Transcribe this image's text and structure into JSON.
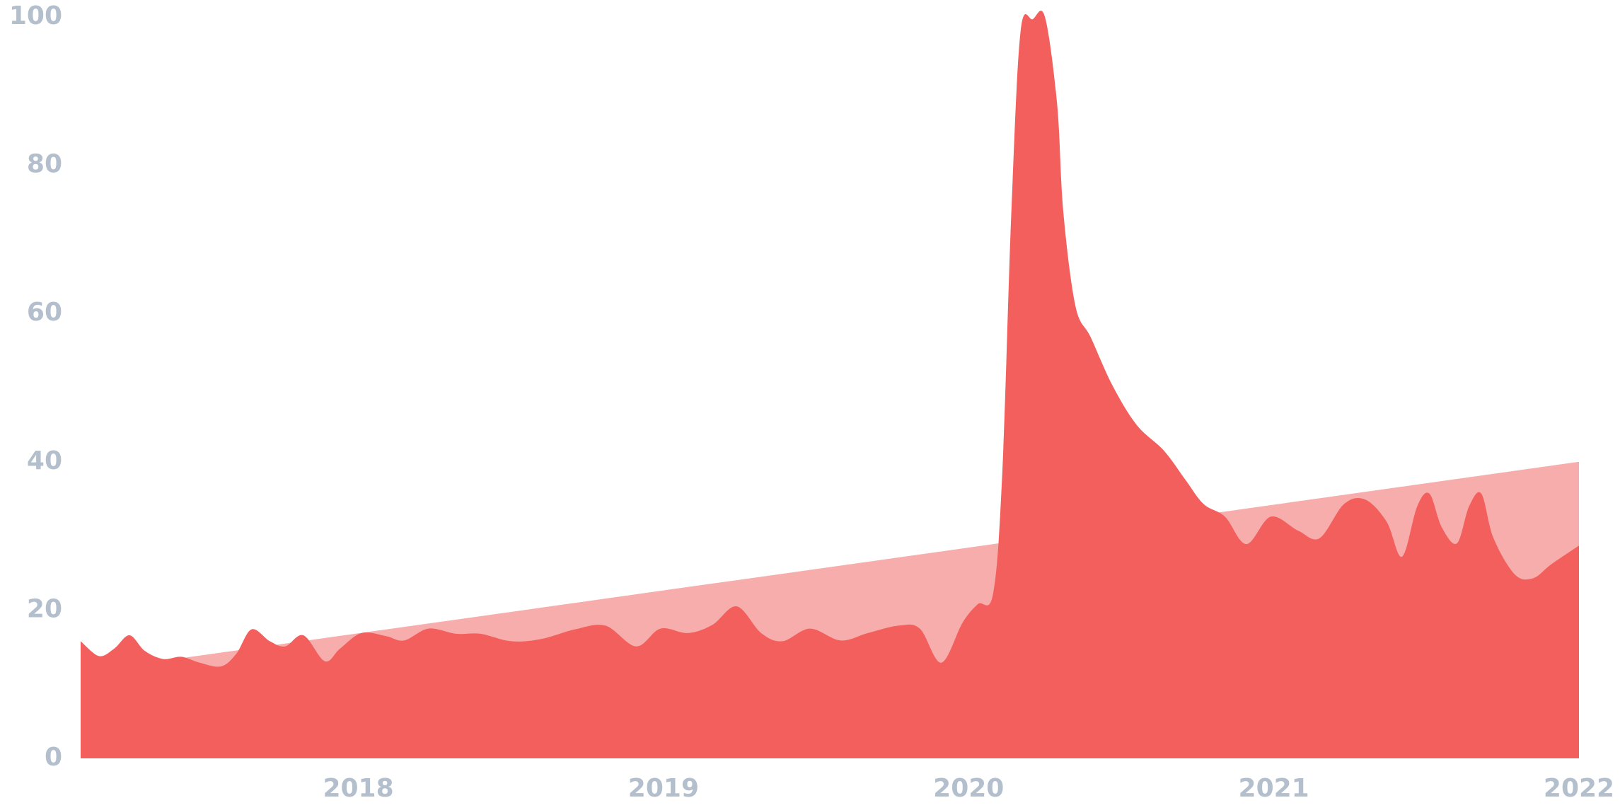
{
  "chart_data": {
    "type": "area",
    "xlim": [
      2017.09,
      2022
    ],
    "xticks": [
      2018,
      2019,
      2020,
      2021,
      2022
    ],
    "ylim": [
      0,
      100
    ],
    "yticks": [
      0,
      20,
      40,
      60,
      80,
      100
    ],
    "grid": false,
    "series": [
      {
        "color": "#f7adac",
        "x": [
          2017.09,
          2022
        ],
        "values": [
          11.6,
          40
        ]
      },
      {
        "color": "#f25f5c",
        "x": [
          2017.09,
          2017.15,
          2017.2,
          2017.25,
          2017.3,
          2017.36,
          2017.42,
          2017.48,
          2017.55,
          2017.6,
          2017.65,
          2017.71,
          2017.76,
          2017.82,
          2017.89,
          2017.94,
          2018.01,
          2018.09,
          2018.15,
          2018.23,
          2018.32,
          2018.4,
          2018.5,
          2018.6,
          2018.71,
          2018.81,
          2018.91,
          2018.99,
          2019.08,
          2019.16,
          2019.24,
          2019.32,
          2019.39,
          2019.48,
          2019.58,
          2019.67,
          2019.77,
          2019.84,
          2019.91,
          2019.98,
          2020.03,
          2020.08,
          2020.11,
          2020.14,
          2020.17,
          2020.21,
          2020.25,
          2020.29,
          2020.31,
          2020.35,
          2020.4,
          2020.47,
          2020.55,
          2020.64,
          2020.71,
          2020.77,
          2020.84,
          2020.91,
          2020.99,
          2021.08,
          2021.15,
          2021.23,
          2021.3,
          2021.37,
          2021.42,
          2021.47,
          2021.51,
          2021.55,
          2021.6,
          2021.64,
          2021.68,
          2021.72,
          2021.79,
          2021.85,
          2021.91,
          2022.0
        ],
        "values": [
          15.8,
          13.8,
          14.8,
          16.6,
          14.5,
          13.4,
          13.7,
          12.9,
          12.4,
          14.1,
          17.4,
          15.8,
          15.1,
          16.6,
          13.1,
          14.8,
          16.9,
          16.5,
          15.9,
          17.5,
          16.8,
          16.8,
          15.8,
          16.1,
          17.4,
          17.9,
          15.1,
          17.5,
          16.9,
          18.0,
          20.5,
          16.9,
          15.8,
          17.5,
          15.9,
          16.9,
          17.9,
          17.5,
          12.9,
          18.3,
          20.8,
          22.2,
          38.3,
          73.8,
          98,
          99.7,
          100,
          88.2,
          73.8,
          61,
          56.8,
          50.4,
          45,
          41.5,
          37.6,
          34.3,
          32.6,
          28.9,
          32.6,
          30.7,
          29.7,
          34.3,
          34.9,
          31.9,
          27.2,
          34,
          35.7,
          31.2,
          29,
          34,
          35.7,
          29.7,
          24.8,
          24.3,
          26.2,
          28.7
        ]
      }
    ]
  }
}
